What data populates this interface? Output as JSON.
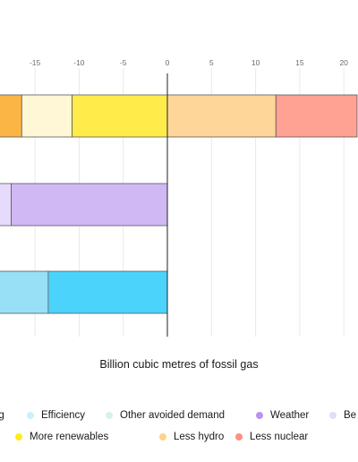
{
  "chart_data": {
    "type": "bar",
    "orientation": "horizontal",
    "stacked": true,
    "xlabel": "Billion cubic metres of fossil gas",
    "xticks": [
      -15,
      -10,
      -5,
      0,
      5,
      10,
      15,
      20
    ],
    "xlim": [
      -19.3,
      21.5
    ],
    "grid": true,
    "legend_position": "bottom",
    "rows": [
      {
        "segments": [
          {
            "series": "Gas price-driven reduction",
            "start": -19.3,
            "end": -16.5,
            "color": "#fbb545"
          },
          {
            "series": "Behavioural change",
            "start": -16.5,
            "end": -10.8,
            "color": "#fff7d6"
          },
          {
            "series": "More renewables",
            "start": -10.8,
            "end": 0,
            "color": "#ffec4a"
          },
          {
            "series": "Less hydro",
            "start": 0,
            "end": 12.3,
            "color": "#ffd699"
          },
          {
            "series": "Less nuclear",
            "start": 12.3,
            "end": 21.5,
            "color": "#ffa193"
          }
        ]
      },
      {
        "segments": [
          {
            "series": "Behavioural change",
            "start": -19.3,
            "end": -17.7,
            "color": "#e6dbfb"
          },
          {
            "series": "Weather",
            "start": -17.7,
            "end": 0,
            "color": "#cfb8f4"
          }
        ]
      },
      {
        "segments": [
          {
            "series": "Other avoided demand",
            "start": -19.3,
            "end": -13.5,
            "color": "#98e0f5"
          },
          {
            "series": "Efficiency",
            "start": -13.5,
            "end": 0,
            "color": "#4cd3fc"
          }
        ]
      }
    ],
    "legend": [
      {
        "label": "ng",
        "color": "#fbb545"
      },
      {
        "label": "Efficiency",
        "color": "#c8f0fb"
      },
      {
        "label": "Other avoided demand",
        "color": "#d3f5e4"
      },
      {
        "label": "Weather",
        "color": "#b794ef"
      },
      {
        "label": "Be",
        "color": "#e6dbfb"
      },
      {
        "label": "More renewables",
        "color": "#ffec1a"
      },
      {
        "label": "Less hydro",
        "color": "#ffd38b"
      },
      {
        "label": "Less nuclear",
        "color": "#ff8f80"
      }
    ]
  }
}
